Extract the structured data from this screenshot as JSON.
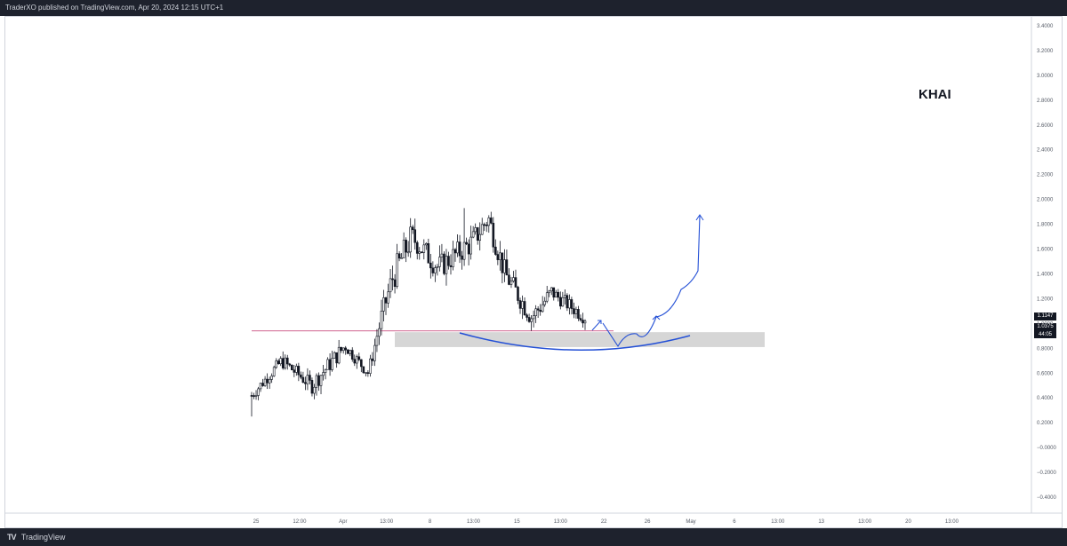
{
  "header": {
    "publisher_text": "TraderXO published on TradingView.com, Apr 20, 2024 12:15 UTC+1"
  },
  "footer": {
    "logo_glyph": "TV",
    "brand": "TradingView"
  },
  "symbol_label": "KHAI",
  "price_labels": {
    "current": "1.1147",
    "last": "1.0375",
    "countdown": "44:05"
  },
  "colors": {
    "candle": "#131722",
    "drawing": "#2450d6",
    "zone": "#d6d6d6",
    "hline": "#c0306a",
    "tag_bg": "#131722",
    "axis_text": "#555b66"
  },
  "chart_data": {
    "type": "candlestick",
    "price_axis": {
      "range": [
        -0.4,
        3.4
      ],
      "ticks": [
        "3.4000",
        "3.2000",
        "3.0000",
        "2.8000",
        "2.6000",
        "2.4000",
        "2.2000",
        "2.0000",
        "1.8000",
        "1.6000",
        "1.4000",
        "1.2000",
        "1.0000",
        "0.8000",
        "0.6000",
        "0.4000",
        "0.2000",
        "−0.0000",
        "−0.2000",
        "−0.4000"
      ]
    },
    "time_axis": {
      "ticks": [
        "25",
        "12:00",
        "Apr",
        "13:00",
        "8",
        "13:00",
        "15",
        "13:00",
        "22",
        "26",
        "May",
        "6",
        "13:00",
        "13",
        "13:00",
        "20",
        "13:00"
      ]
    },
    "segments": [
      {
        "t0": 0.0,
        "t1": 0.09,
        "from": 0.42,
        "to": 0.7,
        "noise": 0.05
      },
      {
        "t0": 0.09,
        "t1": 0.18,
        "from": 0.7,
        "to": 0.5,
        "noise": 0.06
      },
      {
        "t0": 0.18,
        "t1": 0.28,
        "from": 0.5,
        "to": 0.82,
        "noise": 0.07
      },
      {
        "t0": 0.28,
        "t1": 0.35,
        "from": 0.82,
        "to": 0.6,
        "noise": 0.05
      },
      {
        "t0": 0.35,
        "t1": 0.38,
        "from": 0.6,
        "to": 0.95,
        "noise": 0.06
      },
      {
        "t0": 0.38,
        "t1": 0.42,
        "from": 0.95,
        "to": 1.35,
        "noise": 0.1
      },
      {
        "t0": 0.42,
        "t1": 0.48,
        "from": 1.35,
        "to": 1.7,
        "noise": 0.12
      },
      {
        "t0": 0.48,
        "t1": 0.56,
        "from": 1.7,
        "to": 1.45,
        "noise": 0.1
      },
      {
        "t0": 0.56,
        "t1": 0.66,
        "from": 1.45,
        "to": 1.65,
        "noise": 0.1
      },
      {
        "t0": 0.66,
        "t1": 0.71,
        "from": 1.65,
        "to": 1.85,
        "noise": 0.1
      },
      {
        "t0": 0.71,
        "t1": 0.76,
        "from": 1.85,
        "to": 1.4,
        "noise": 0.1
      },
      {
        "t0": 0.76,
        "t1": 0.84,
        "from": 1.4,
        "to": 1.05,
        "noise": 0.09
      },
      {
        "t0": 0.84,
        "t1": 0.9,
        "from": 1.05,
        "to": 1.25,
        "noise": 0.08
      },
      {
        "t0": 0.9,
        "t1": 1.0,
        "from": 1.25,
        "to": 1.05,
        "noise": 0.06
      }
    ],
    "support_zone": {
      "low": 0.81,
      "high": 0.93
    },
    "horizontal_level": 0.94,
    "low_wick": 0.25,
    "high_wick": 1.93
  }
}
